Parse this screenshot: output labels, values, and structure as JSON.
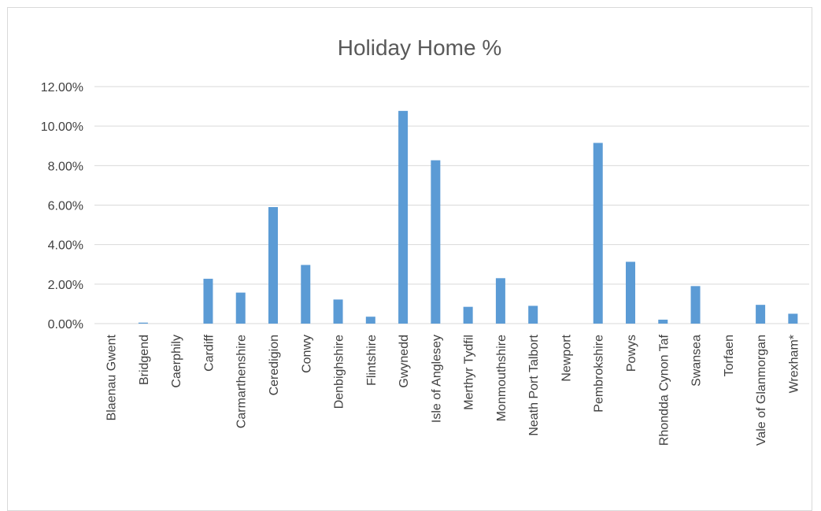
{
  "chart_data": {
    "type": "bar",
    "title": "Holiday Home %",
    "xlabel": "",
    "ylabel": "",
    "ylim": [
      0,
      0.12
    ],
    "grid": true,
    "legend": "none",
    "yticks": [
      "0.00%",
      "2.00%",
      "4.00%",
      "6.00%",
      "8.00%",
      "10.00%",
      "12.00%"
    ],
    "categories": [
      "Blaenau Gwent",
      "Bridgend",
      "Caerphily",
      "Cardiff",
      "Carmarthenshire",
      "Ceredigion",
      "Conwy",
      "Denbighshire",
      "Flintshire",
      "Gwynedd",
      "Isle of Anglesey",
      "Merthyr Tydfil",
      "Monmouthshire",
      "Neath Port Talbort",
      "Newport",
      "Pembrokshire",
      "Powys",
      "Rhondda Cynon Taf",
      "Swansea",
      "Torfaen",
      "Vale of Glanmorgan",
      "Wrexham*"
    ],
    "values": [
      0.0,
      0.0005,
      0.0,
      0.0227,
      0.0157,
      0.059,
      0.0297,
      0.0122,
      0.0035,
      0.1077,
      0.0827,
      0.0085,
      0.023,
      0.009,
      0.0,
      0.0915,
      0.0313,
      0.002,
      0.019,
      0.0,
      0.0095,
      0.005
    ],
    "bar_color": "#5b9bd5",
    "grid_color": "#d9d9d9"
  }
}
